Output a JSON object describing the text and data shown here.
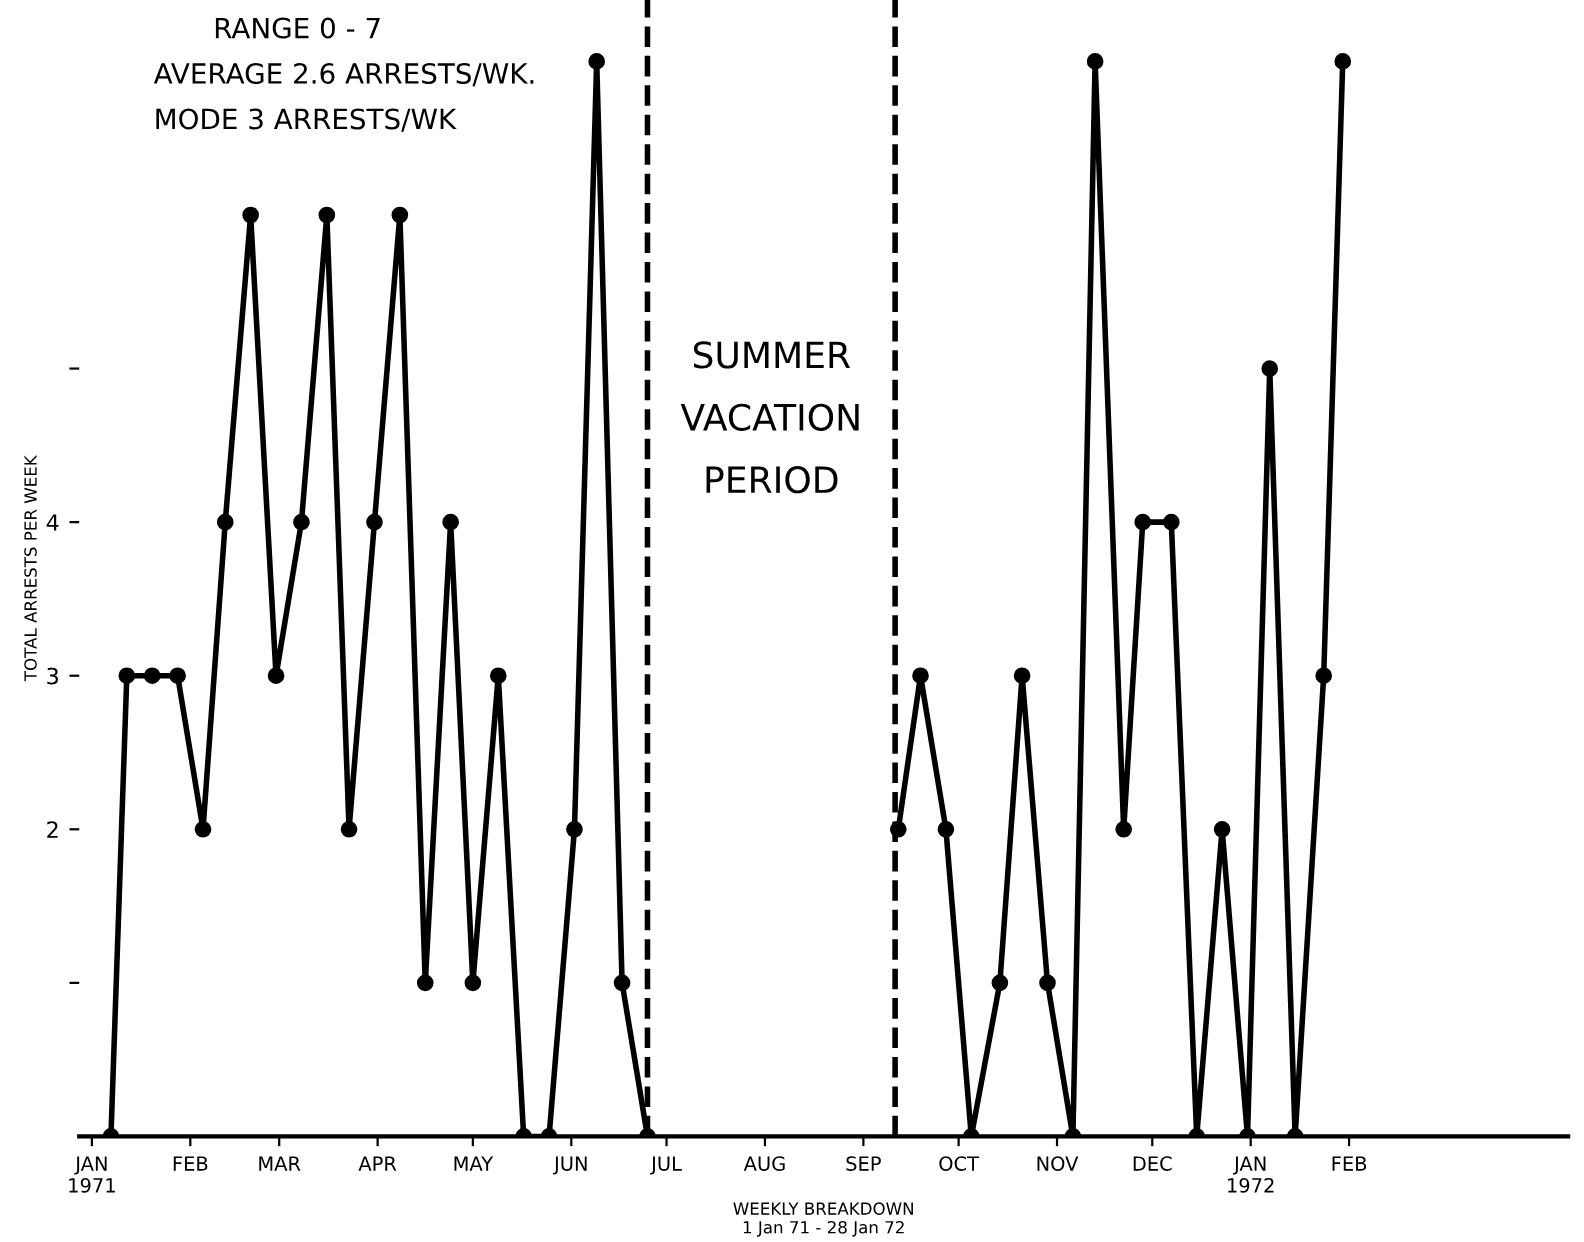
{
  "chart_data": {
    "type": "line",
    "xlabel": "WEEKLY BREAKDOWN\n1 Jan 71 - 28 Jan 72",
    "ylabel": "TOTAL ARRESTS PER WEEK",
    "x": [
      "1971-01-07",
      "1971-01-12",
      "1971-01-20",
      "1971-01-28",
      "1971-02-05",
      "1971-02-12",
      "1971-02-20",
      "1971-02-28",
      "1971-03-08",
      "1971-03-16",
      "1971-03-23",
      "1971-03-31",
      "1971-04-08",
      "1971-04-16",
      "1971-04-24",
      "1971-05-01",
      "1971-05-09",
      "1971-05-17",
      "1971-05-25",
      "1971-06-02",
      "1971-06-09",
      "1971-06-17",
      "1971-06-25",
      "1971-08-01",
      "1971-09-12",
      "1971-09-19",
      "1971-09-27",
      "1971-10-05",
      "1971-10-14",
      "1971-10-21",
      "1971-10-29",
      "1971-11-06",
      "1971-11-13",
      "1971-11-22",
      "1971-11-28",
      "1971-12-07",
      "1971-12-15",
      "1971-12-23",
      "1971-12-31",
      "1972-01-07",
      "1972-01-15",
      "1972-01-24",
      "1972-01-30"
    ],
    "series": [
      {
        "color": "#000000",
        "values": [
          0,
          3,
          3,
          3,
          2,
          4,
          6,
          3,
          4,
          6,
          2,
          4,
          6,
          1,
          4,
          1,
          3,
          0,
          0,
          2,
          7,
          1,
          0,
          null,
          2,
          3,
          2,
          0,
          1,
          3,
          1,
          0,
          7,
          2,
          4,
          4,
          0,
          2,
          0,
          5,
          0,
          3,
          7
        ]
      }
    ],
    "marker": "circle",
    "line_style": "solid",
    "grid": false,
    "legend": false,
    "xlim": [
      "1970-12-28",
      "1972-04-10"
    ],
    "xticks": [
      {
        "value": "1971-01-01",
        "label": "JAN\n1971"
      },
      {
        "value": "1971-02-01",
        "label": "FEB"
      },
      {
        "value": "1971-03-01",
        "label": "MAR"
      },
      {
        "value": "1971-04-01",
        "label": "APR"
      },
      {
        "value": "1971-05-01",
        "label": "MAY"
      },
      {
        "value": "1971-06-01",
        "label": "JUN"
      },
      {
        "value": "1971-07-01",
        "label": "JUL"
      },
      {
        "value": "1971-08-01",
        "label": "AUG"
      },
      {
        "value": "1971-09-01",
        "label": "SEP"
      },
      {
        "value": "1971-10-01",
        "label": "OCT"
      },
      {
        "value": "1971-11-01",
        "label": "NOV"
      },
      {
        "value": "1971-12-01",
        "label": "DEC"
      },
      {
        "value": "1972-01-01",
        "label": "JAN\n1972"
      },
      {
        "value": "1972-02-01",
        "label": "FEB"
      }
    ],
    "ylim": [
      0,
      7.4
    ],
    "yticks": [
      {
        "value": 1,
        "label": null
      },
      2,
      3,
      4,
      {
        "value": 5,
        "label": null
      }
    ],
    "ref_lines": [
      {
        "axis": "x",
        "value": "1971-06-25",
        "line_style": "dashed"
      },
      {
        "axis": "x",
        "value": "1971-09-11",
        "line_style": "dashed"
      }
    ],
    "annotations": [
      "RANGE 0 - 7",
      "AVERAGE 2.6 ARRESTS/WK.",
      "MODE 3 ARRESTS/WK",
      "SUMMER\nVACATION\nPERIOD"
    ]
  }
}
